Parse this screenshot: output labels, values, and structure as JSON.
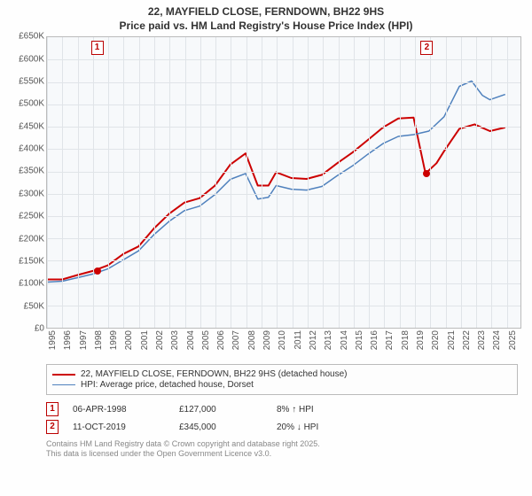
{
  "title_line1": "22, MAYFIELD CLOSE, FERNDOWN, BH22 9HS",
  "title_line2": "Price paid vs. HM Land Registry's House Price Index (HPI)",
  "chart": {
    "type": "line",
    "background_color": "#f7f9fb",
    "grid_color": "#e0e4e8",
    "border_color": "#bbbbbb",
    "yaxis": {
      "min": 0,
      "max": 650000,
      "step": 50000,
      "ticks": [
        "£0",
        "£50K",
        "£100K",
        "£150K",
        "£200K",
        "£250K",
        "£300K",
        "£350K",
        "£400K",
        "£450K",
        "£500K",
        "£550K",
        "£600K",
        "£650K"
      ],
      "fontsize": 10,
      "color": "#555555"
    },
    "xaxis": {
      "min": 1995,
      "max": 2026,
      "ticks": [
        "1995",
        "1996",
        "1997",
        "1998",
        "1999",
        "2000",
        "2001",
        "2002",
        "2003",
        "2004",
        "2005",
        "2006",
        "2007",
        "2008",
        "2009",
        "2010",
        "2011",
        "2012",
        "2013",
        "2014",
        "2015",
        "2016",
        "2017",
        "2018",
        "2019",
        "2020",
        "2021",
        "2022",
        "2023",
        "2024",
        "2025"
      ],
      "fontsize": 10,
      "color": "#555555",
      "rotate_deg": -90
    },
    "series": [
      {
        "name": "property",
        "label": "22, MAYFIELD CLOSE, FERNDOWN, BH22 9HS (detached house)",
        "color": "#cc0000",
        "line_width": 2,
        "points": [
          [
            1995,
            108000
          ],
          [
            1996,
            108000
          ],
          [
            1997,
            118000
          ],
          [
            1998,
            127000
          ],
          [
            1999,
            140000
          ],
          [
            2000,
            165000
          ],
          [
            2001,
            182000
          ],
          [
            2002,
            222000
          ],
          [
            2003,
            255000
          ],
          [
            2004,
            280000
          ],
          [
            2005,
            290000
          ],
          [
            2006,
            318000
          ],
          [
            2007,
            365000
          ],
          [
            2008,
            390000
          ],
          [
            2008.8,
            318000
          ],
          [
            2009.5,
            318000
          ],
          [
            2010,
            348000
          ],
          [
            2011,
            335000
          ],
          [
            2012,
            333000
          ],
          [
            2013,
            342000
          ],
          [
            2014,
            368000
          ],
          [
            2015,
            392000
          ],
          [
            2016,
            420000
          ],
          [
            2017,
            448000
          ],
          [
            2018,
            468000
          ],
          [
            2019,
            470000
          ],
          [
            2019.78,
            345000
          ],
          [
            2020.5,
            368000
          ],
          [
            2021,
            395000
          ],
          [
            2022,
            445000
          ],
          [
            2023,
            455000
          ],
          [
            2024,
            440000
          ],
          [
            2025,
            448000
          ]
        ]
      },
      {
        "name": "hpi",
        "label": "HPI: Average price, detached house, Dorset",
        "color": "#4f81bd",
        "line_width": 1.5,
        "points": [
          [
            1995,
            102000
          ],
          [
            1996,
            104000
          ],
          [
            1997,
            112000
          ],
          [
            1998,
            120000
          ],
          [
            1999,
            132000
          ],
          [
            2000,
            152000
          ],
          [
            2001,
            172000
          ],
          [
            2002,
            208000
          ],
          [
            2003,
            238000
          ],
          [
            2004,
            262000
          ],
          [
            2005,
            272000
          ],
          [
            2006,
            298000
          ],
          [
            2007,
            332000
          ],
          [
            2008,
            345000
          ],
          [
            2008.8,
            288000
          ],
          [
            2009.5,
            292000
          ],
          [
            2010,
            318000
          ],
          [
            2011,
            310000
          ],
          [
            2012,
            308000
          ],
          [
            2013,
            316000
          ],
          [
            2014,
            340000
          ],
          [
            2015,
            362000
          ],
          [
            2016,
            388000
          ],
          [
            2017,
            412000
          ],
          [
            2018,
            428000
          ],
          [
            2019,
            432000
          ],
          [
            2020,
            440000
          ],
          [
            2021,
            472000
          ],
          [
            2022,
            540000
          ],
          [
            2022.8,
            552000
          ],
          [
            2023.5,
            520000
          ],
          [
            2024,
            510000
          ],
          [
            2025,
            522000
          ]
        ]
      }
    ],
    "markers": [
      {
        "n": "1",
        "year": 1998.27,
        "value": 127000,
        "point_color": "#cc0000"
      },
      {
        "n": "2",
        "year": 2019.78,
        "value": 345000,
        "point_color": "#cc0000"
      }
    ],
    "marker_box": {
      "border_color": "#b00000",
      "text_color": "#b00000",
      "bg_color": "#ffffff"
    }
  },
  "legend": {
    "border_color": "#bbbbbb",
    "fontsize": 10
  },
  "sales": [
    {
      "n": "1",
      "date": "06-APR-1998",
      "price": "£127,000",
      "delta": "8% ↑ HPI"
    },
    {
      "n": "2",
      "date": "11-OCT-2019",
      "price": "£345,000",
      "delta": "20% ↓ HPI"
    }
  ],
  "footer_line1": "Contains HM Land Registry data © Crown copyright and database right 2025.",
  "footer_line2": "This data is licensed under the Open Government Licence v3.0."
}
